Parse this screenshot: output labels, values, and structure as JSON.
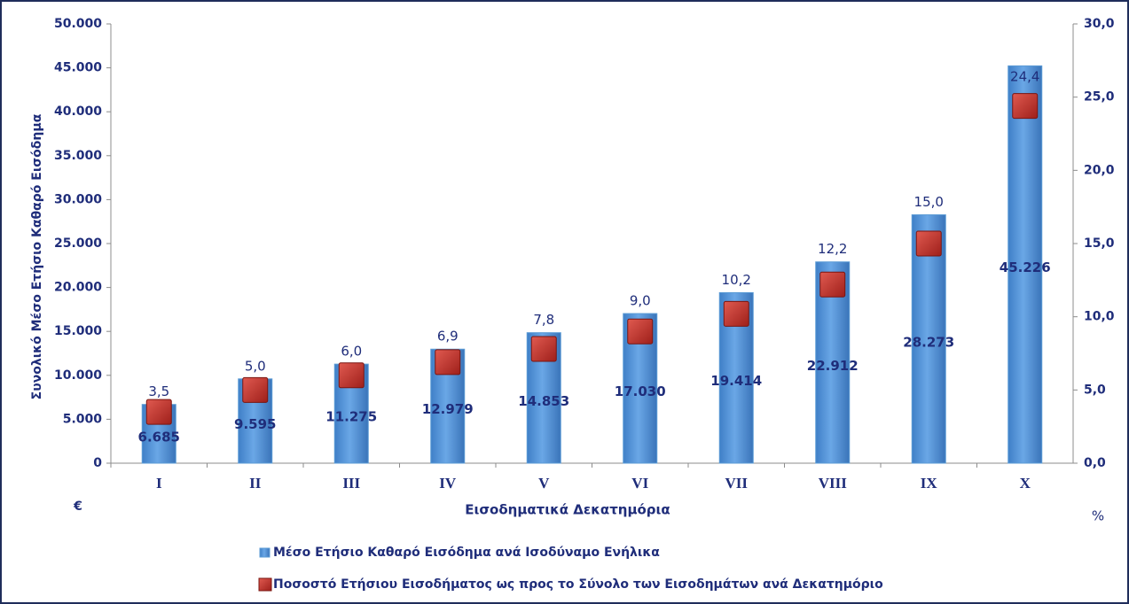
{
  "chart_data": {
    "type": "bar",
    "ylabel": "Συνολικό Μέσο Ετήσιο Καθαρό Εισόδημα",
    "xlabel": "Εισοδηματικά Δεκατημόρια",
    "y_unit": "€",
    "y2_unit": "%",
    "categories": [
      "I",
      "II",
      "III",
      "IV",
      "V",
      "VI",
      "VII",
      "VIII",
      "IX",
      "X"
    ],
    "series": [
      {
        "name": "Μέσο Ετήσιο Καθαρό Εισόδημα ανά Ισοδύναμο Ενήλικα",
        "type": "bar",
        "color": "#5b9bd5",
        "values": [
          6685,
          9595,
          11275,
          12979,
          14853,
          17030,
          19414,
          22912,
          28273,
          45226
        ],
        "value_labels": [
          "6.685",
          "9.595",
          "11.275",
          "12.979",
          "14.853",
          "17.030",
          "19.414",
          "22.912",
          "28.273",
          "45.226"
        ]
      },
      {
        "name": "Ποσοστό Ετήσιου Εισοδήματος ως προς το Σύνολο των Εισοδημάτων ανά Δεκατημόριο",
        "type": "scatter",
        "axis": "y2",
        "color": "#c0302a",
        "values": [
          3.5,
          5.0,
          6.0,
          6.9,
          7.8,
          9.0,
          10.2,
          12.2,
          15.0,
          24.4
        ],
        "value_labels": [
          "3,5",
          "5,0",
          "6,0",
          "6,9",
          "7,8",
          "9,0",
          "10,2",
          "12,2",
          "15,0",
          "24,4"
        ]
      }
    ],
    "ylim": [
      0,
      50000
    ],
    "yticks": [
      0,
      {
        "value": 5000,
        "label": "5.000"
      },
      {
        "value": 10000,
        "label": "10.000"
      },
      {
        "value": 15000,
        "label": "15.000"
      },
      {
        "value": 20000,
        "label": "20.000"
      },
      {
        "value": 25000,
        "label": "25.000"
      },
      {
        "value": 30000,
        "label": "30.000"
      },
      {
        "value": 35000,
        "label": "35.000"
      },
      {
        "value": 40000,
        "label": "40.000"
      },
      {
        "value": 45000,
        "label": "45.000"
      },
      {
        "value": 50000,
        "label": "50.000"
      }
    ],
    "y2lim": [
      0,
      30
    ],
    "y2ticks": [
      {
        "value": 0,
        "label": "0,0"
      },
      {
        "value": 5,
        "label": "5,0"
      },
      {
        "value": 10,
        "label": "10,0"
      },
      {
        "value": 15,
        "label": "15,0"
      },
      {
        "value": 20,
        "label": "20,0"
      },
      {
        "value": 25,
        "label": "25,0"
      },
      {
        "value": 30,
        "label": "30,0"
      }
    ],
    "grid": false,
    "legend": "bottom"
  }
}
